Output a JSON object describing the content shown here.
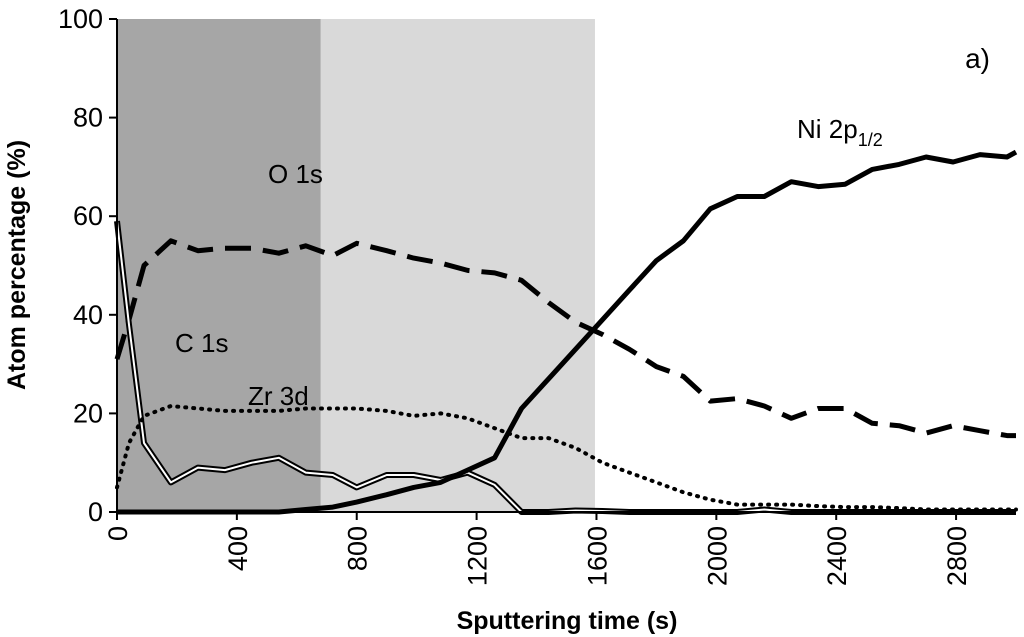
{
  "chart_data": {
    "type": "line",
    "panel_label": "a)",
    "xlabel": "Sputtering time  (s)",
    "ylabel": "Atom percentage (%)",
    "xlim": [
      0,
      3000
    ],
    "ylim": [
      0,
      100
    ],
    "xticks": [
      "0",
      "400",
      "800",
      "1200",
      "1600",
      "2000",
      "2400",
      "2800"
    ],
    "xtick_values": [
      0,
      400,
      800,
      1200,
      1600,
      2000,
      2400,
      2800
    ],
    "yticks": [
      "0",
      "20",
      "40",
      "60",
      "80",
      "100"
    ],
    "ytick_values": [
      0,
      20,
      40,
      60,
      80,
      100
    ],
    "shaded_regions": [
      {
        "x0": 0,
        "x1": 680,
        "color": "#a6a6a6"
      },
      {
        "x0": 680,
        "x1": 1595,
        "color": "#d9d9d9"
      }
    ],
    "annotations": [
      {
        "text": "O 1s",
        "series": "O 1s"
      },
      {
        "text": "C 1s",
        "series": "C 1s"
      },
      {
        "text": "Zr 3d",
        "series": "Zr 3d"
      },
      {
        "text": "Ni 2p",
        "sub": "1/2",
        "series": "Ni 2p1/2"
      }
    ],
    "series": [
      {
        "name": "O 1s",
        "style": "dashed",
        "x": [
          0,
          40,
          90,
          180,
          270,
          360,
          450,
          540,
          630,
          720,
          800,
          900,
          990,
          1080,
          1170,
          1260,
          1350,
          1440,
          1530,
          1620,
          1710,
          1800,
          1890,
          1980,
          2070,
          2160,
          2250,
          2340,
          2430,
          2520,
          2610,
          2700,
          2790,
          2880,
          2970,
          3000
        ],
        "y": [
          31,
          39,
          50,
          55,
          53,
          53.5,
          53.5,
          52.5,
          54,
          52,
          54.5,
          53,
          51.5,
          50.5,
          49,
          48.5,
          47,
          42.5,
          38.5,
          36,
          33,
          29.5,
          27.5,
          22.5,
          23,
          21.5,
          19,
          21,
          21,
          18,
          17.5,
          16,
          17.5,
          16.5,
          15.5,
          15.5
        ]
      },
      {
        "name": "C 1s",
        "style": "double",
        "x": [
          0,
          40,
          90,
          180,
          270,
          360,
          450,
          540,
          630,
          720,
          800,
          900,
          990,
          1080,
          1170,
          1260,
          1350,
          1440,
          1530,
          1620,
          1710,
          1800,
          1890,
          1980,
          2070,
          2160,
          2250,
          2340,
          2430,
          2520,
          2610,
          2700,
          2790,
          2880,
          2970,
          3000
        ],
        "y": [
          59,
          38,
          14,
          6,
          9,
          8.5,
          10,
          11,
          8,
          7.5,
          5,
          7.5,
          7.5,
          6.5,
          8,
          5.5,
          0,
          0,
          0.3,
          0.2,
          0,
          0,
          0,
          0,
          0,
          0.5,
          0,
          0,
          0,
          0,
          0,
          0,
          0,
          0,
          0,
          0
        ]
      },
      {
        "name": "Zr 3d",
        "style": "dotted",
        "x": [
          0,
          40,
          90,
          180,
          270,
          360,
          450,
          540,
          630,
          720,
          800,
          900,
          990,
          1080,
          1170,
          1260,
          1350,
          1440,
          1530,
          1620,
          1710,
          1800,
          1890,
          1980,
          2070,
          2160,
          2250,
          2340,
          2430,
          2520,
          2610,
          2700,
          2790,
          2880,
          2970,
          3000
        ],
        "y": [
          5,
          14,
          19.5,
          21.5,
          21,
          20.5,
          20.5,
          20.5,
          21,
          21,
          21,
          20.5,
          19.5,
          20,
          19,
          17,
          15,
          15,
          13,
          10,
          8,
          6,
          4,
          2.5,
          1.5,
          1.5,
          1.5,
          1.2,
          1,
          1,
          0.8,
          0.5,
          0.5,
          0.5,
          0.5,
          0.5
        ]
      },
      {
        "name": "Ni 2p1/2",
        "style": "solid",
        "x": [
          0,
          40,
          90,
          180,
          270,
          360,
          450,
          540,
          630,
          720,
          800,
          900,
          990,
          1080,
          1170,
          1260,
          1350,
          1440,
          1530,
          1620,
          1710,
          1800,
          1890,
          1980,
          2070,
          2160,
          2250,
          2340,
          2430,
          2520,
          2610,
          2700,
          2790,
          2880,
          2970,
          3000
        ],
        "y": [
          0,
          0,
          0,
          0,
          0,
          0,
          0,
          0,
          0.5,
          1,
          2,
          3.5,
          5,
          6,
          8.5,
          11,
          21,
          27,
          33,
          39,
          45,
          51,
          55,
          61.5,
          64,
          64,
          67,
          66,
          66.5,
          69.5,
          70.5,
          72,
          71,
          72.5,
          72,
          73
        ]
      }
    ]
  }
}
